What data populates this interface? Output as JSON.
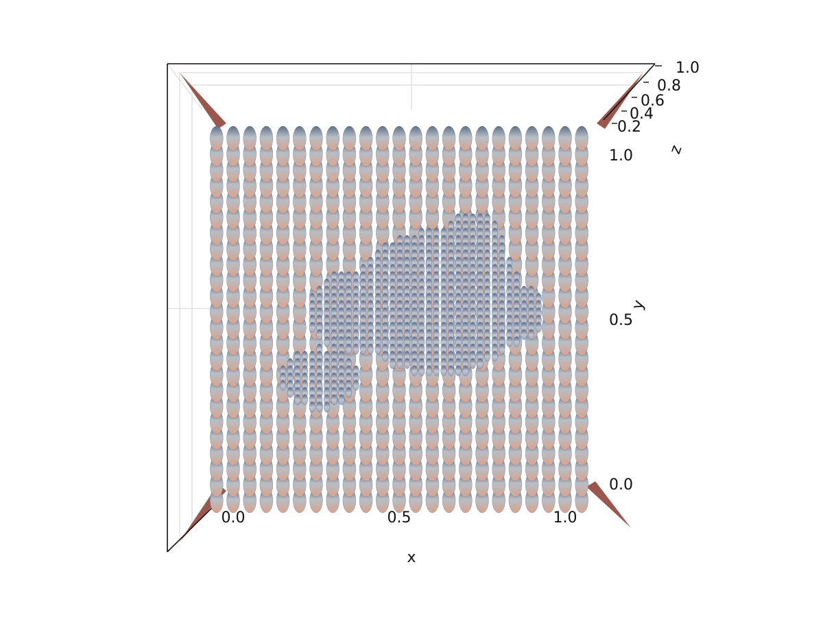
{
  "chart_data": {
    "type": "3d-glyph-field",
    "title": "",
    "view": "top-down (looking along -z)",
    "grid": true,
    "axes": {
      "x": {
        "label": "x",
        "ticks": [
          "0.0",
          "0.5",
          "1.0"
        ],
        "range": [
          -0.2,
          1.2
        ]
      },
      "y": {
        "label": "y",
        "ticks": [
          "0.0",
          "0.5",
          "1.0"
        ],
        "range": [
          -0.1,
          1.1
        ]
      },
      "z": {
        "label": "z",
        "ticks": [
          "0.2",
          "0.4",
          "0.6",
          "0.8",
          "1.0"
        ],
        "range": [
          0.0,
          1.0
        ]
      }
    },
    "glyph": "ellipsoid",
    "coarse_grid": {
      "nx": 23,
      "ny": 24,
      "x_range": [
        -0.05,
        1.05
      ],
      "y_range": [
        -0.05,
        1.05
      ]
    },
    "fine_region": {
      "description": "irregular patch of small ellipsoids",
      "x_range": [
        0.15,
        1.0
      ],
      "y_range": [
        0.2,
        0.85
      ],
      "spacing": 0.022
    },
    "colors": {
      "glyph_top": "#5f6f86",
      "glyph_mid": "#b7bec6",
      "glyph_edge": "#d8a38b",
      "glyph_outline": "#4d5f88",
      "axis": "#111111",
      "grid": "#d9d9d9",
      "corner_wedge": "#8a3a2e"
    }
  }
}
